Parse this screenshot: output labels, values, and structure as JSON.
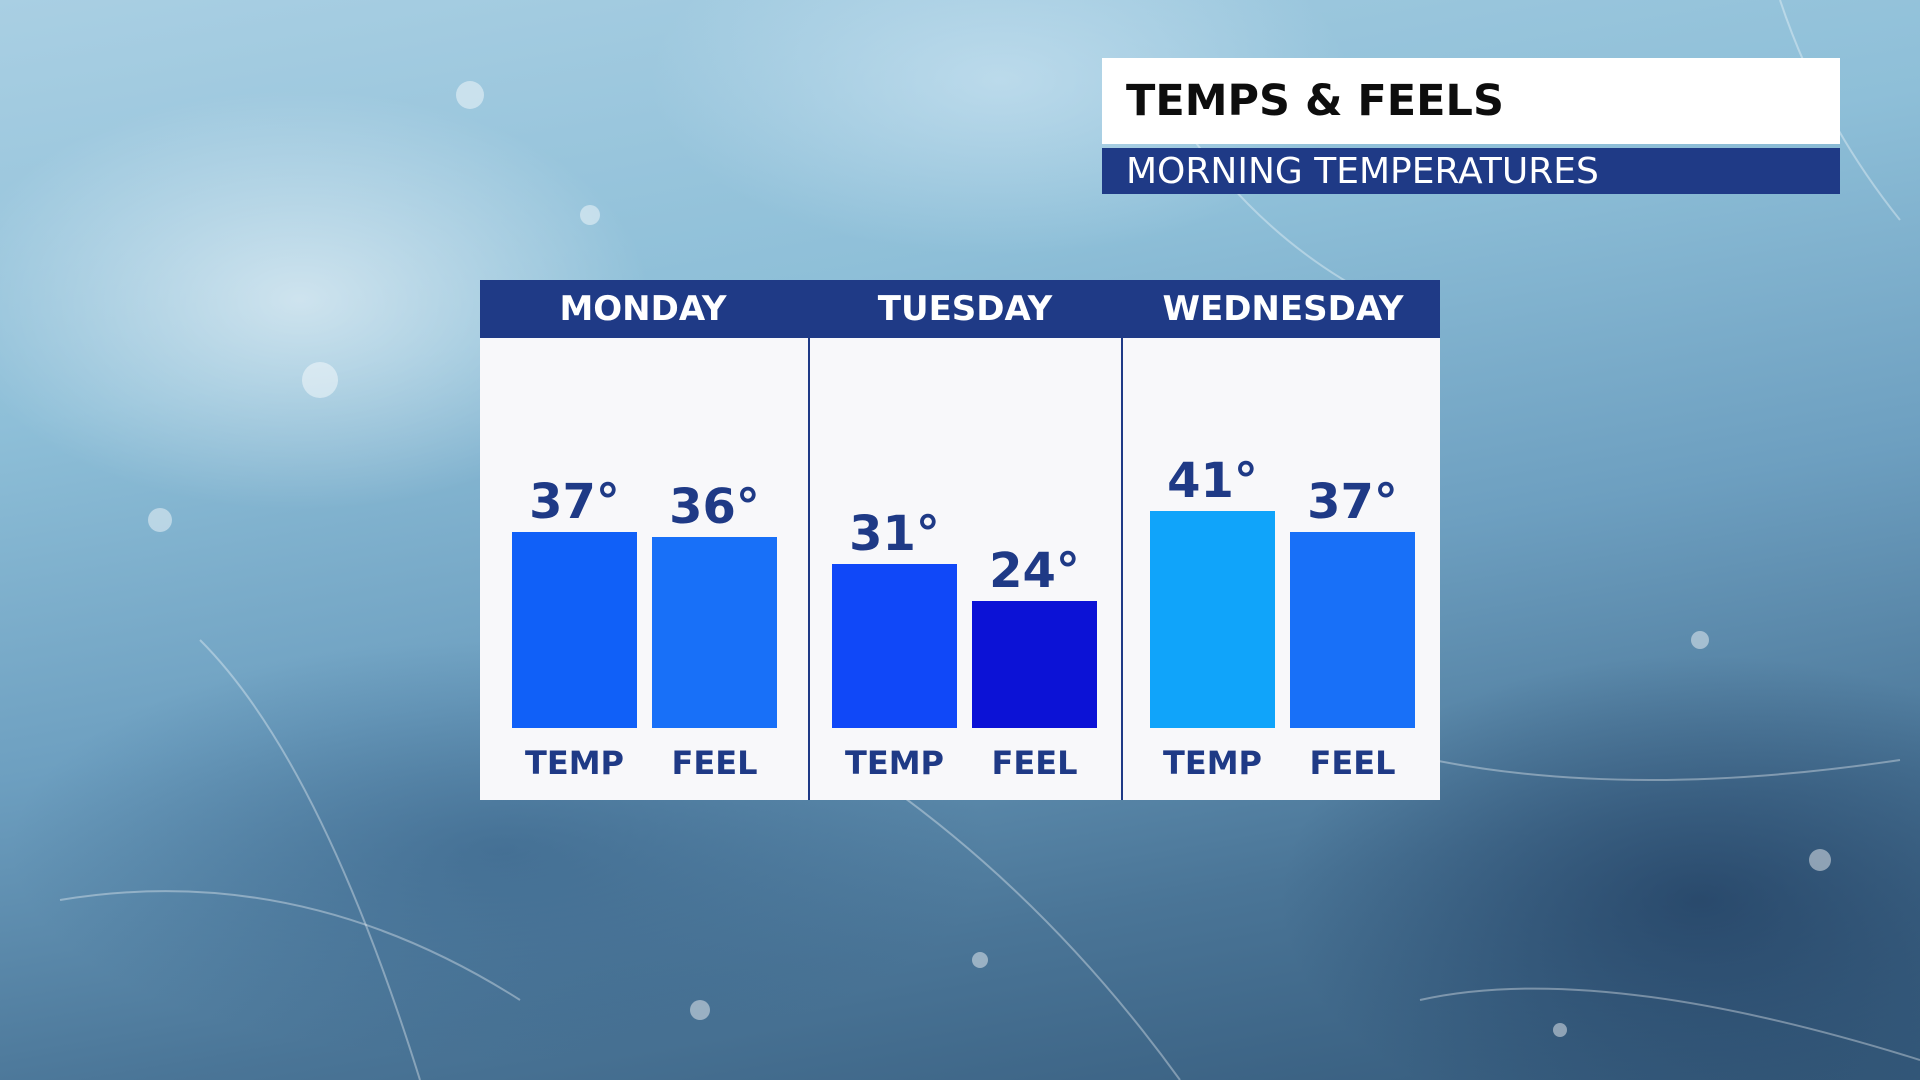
{
  "title": "TEMPS & FEELS",
  "subtitle": "MORNING TEMPERATURES",
  "colors": {
    "header": "#1f3a86",
    "bar_colors": [
      "#1060f8",
      "#1870f8",
      "#1048f8",
      "#0c12d6",
      "#10a4fa",
      "#1870f8"
    ]
  },
  "chart_data": {
    "type": "bar",
    "categories": [
      "MONDAY",
      "TUESDAY",
      "WEDNESDAY"
    ],
    "series_labels": [
      "TEMP",
      "FEEL"
    ],
    "groups": [
      {
        "day": "MONDAY",
        "bars": [
          {
            "label": "TEMP",
            "value": 37,
            "text": "37°"
          },
          {
            "label": "FEEL",
            "value": 36,
            "text": "36°"
          }
        ]
      },
      {
        "day": "TUESDAY",
        "bars": [
          {
            "label": "TEMP",
            "value": 31,
            "text": "31°"
          },
          {
            "label": "FEEL",
            "value": 24,
            "text": "24°"
          }
        ]
      },
      {
        "day": "WEDNESDAY",
        "bars": [
          {
            "label": "TEMP",
            "value": 41,
            "text": "41°"
          },
          {
            "label": "FEEL",
            "value": 37,
            "text": "37°"
          }
        ]
      }
    ],
    "xlabel": "",
    "ylabel": "",
    "grid": false
  }
}
